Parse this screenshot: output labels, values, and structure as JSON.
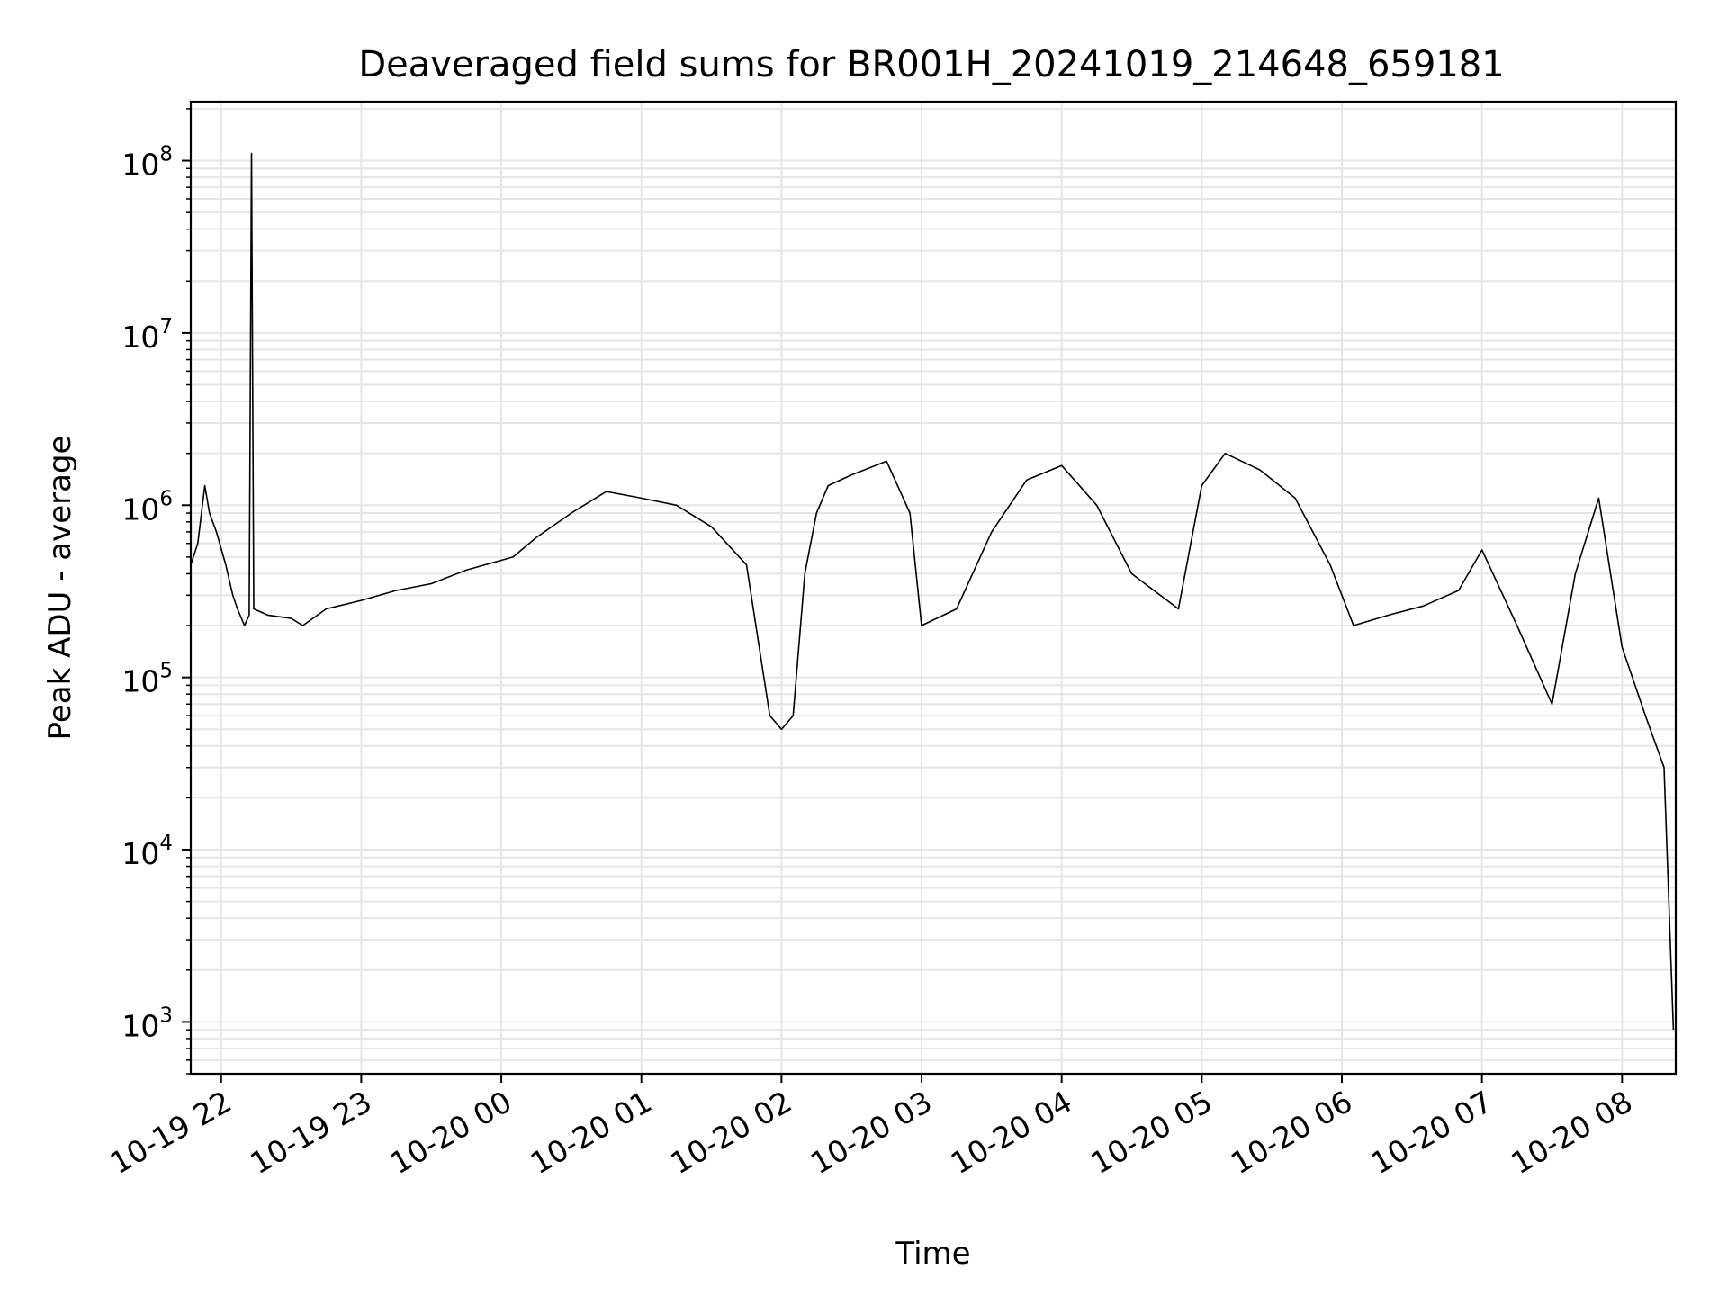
{
  "chart_data": {
    "type": "line",
    "title": "Deaveraged field sums for BR001H_20241019_214648_659181",
    "xlabel": "Time",
    "ylabel": "Peak ADU - average",
    "yscale": "log",
    "ylim": [
      500,
      220000000
    ],
    "xlim": [
      "2024-10-19 21:47",
      "2024-10-20 08:23"
    ],
    "grid": true,
    "line_color": "#000000",
    "x_ticks": [
      {
        "t": "2024-10-19 22:00",
        "label": "10-19 22"
      },
      {
        "t": "2024-10-19 23:00",
        "label": "10-19 23"
      },
      {
        "t": "2024-10-20 00:00",
        "label": "10-20 00"
      },
      {
        "t": "2024-10-20 01:00",
        "label": "10-20 01"
      },
      {
        "t": "2024-10-20 02:00",
        "label": "10-20 02"
      },
      {
        "t": "2024-10-20 03:00",
        "label": "10-20 03"
      },
      {
        "t": "2024-10-20 04:00",
        "label": "10-20 04"
      },
      {
        "t": "2024-10-20 05:00",
        "label": "10-20 05"
      },
      {
        "t": "2024-10-20 06:00",
        "label": "10-20 06"
      },
      {
        "t": "2024-10-20 07:00",
        "label": "10-20 07"
      },
      {
        "t": "2024-10-20 08:00",
        "label": "10-20 08"
      }
    ],
    "y_ticks": [
      {
        "v": 1000,
        "base": "10",
        "exp": "3"
      },
      {
        "v": 10000,
        "base": "10",
        "exp": "4"
      },
      {
        "v": 100000,
        "base": "10",
        "exp": "5"
      },
      {
        "v": 1000000,
        "base": "10",
        "exp": "6"
      },
      {
        "v": 10000000,
        "base": "10",
        "exp": "7"
      },
      {
        "v": 100000000,
        "base": "10",
        "exp": "8"
      }
    ],
    "series": [
      {
        "x": [
          "2024-10-19 21:47",
          "2024-10-19 21:50",
          "2024-10-19 21:53",
          "2024-10-19 21:55",
          "2024-10-19 21:58",
          "2024-10-19 22:02",
          "2024-10-19 22:05",
          "2024-10-19 22:07",
          "2024-10-19 22:10",
          "2024-10-19 22:12",
          "2024-10-19 22:13",
          "2024-10-19 22:14",
          "2024-10-19 22:20",
          "2024-10-19 22:30",
          "2024-10-19 22:35",
          "2024-10-19 22:45",
          "2024-10-19 23:00",
          "2024-10-19 23:15",
          "2024-10-19 23:30",
          "2024-10-19 23:45",
          "2024-10-20 00:05",
          "2024-10-20 00:15",
          "2024-10-20 00:30",
          "2024-10-20 00:45",
          "2024-10-20 01:00",
          "2024-10-20 01:15",
          "2024-10-20 01:30",
          "2024-10-20 01:45",
          "2024-10-20 01:55",
          "2024-10-20 02:00",
          "2024-10-20 02:05",
          "2024-10-20 02:10",
          "2024-10-20 02:15",
          "2024-10-20 02:20",
          "2024-10-20 02:30",
          "2024-10-20 02:45",
          "2024-10-20 02:55",
          "2024-10-20 03:00",
          "2024-10-20 03:15",
          "2024-10-20 03:30",
          "2024-10-20 03:45",
          "2024-10-20 04:00",
          "2024-10-20 04:15",
          "2024-10-20 04:30",
          "2024-10-20 04:50",
          "2024-10-20 05:00",
          "2024-10-20 05:10",
          "2024-10-20 05:25",
          "2024-10-20 05:40",
          "2024-10-20 05:55",
          "2024-10-20 06:05",
          "2024-10-20 06:20",
          "2024-10-20 06:35",
          "2024-10-20 06:50",
          "2024-10-20 07:00",
          "2024-10-20 07:15",
          "2024-10-20 07:30",
          "2024-10-20 07:40",
          "2024-10-20 07:50",
          "2024-10-20 08:00",
          "2024-10-20 08:10",
          "2024-10-20 08:18",
          "2024-10-20 08:22"
        ],
        "y": [
          450000,
          600000,
          1300000,
          900000,
          700000,
          450000,
          300000,
          250000,
          200000,
          230000,
          110000000,
          250000,
          230000,
          220000,
          200000,
          250000,
          280000,
          320000,
          350000,
          420000,
          500000,
          650000,
          900000,
          1200000,
          1100000,
          1000000,
          750000,
          450000,
          60000,
          50000,
          60000,
          400000,
          900000,
          1300000,
          1500000,
          1800000,
          900000,
          200000,
          250000,
          700000,
          1400000,
          1700000,
          1000000,
          400000,
          250000,
          1300000,
          2000000,
          1600000,
          1100000,
          450000,
          200000,
          230000,
          260000,
          320000,
          550000,
          200000,
          70000,
          400000,
          1100000,
          150000,
          60000,
          30000,
          900
        ]
      }
    ]
  }
}
